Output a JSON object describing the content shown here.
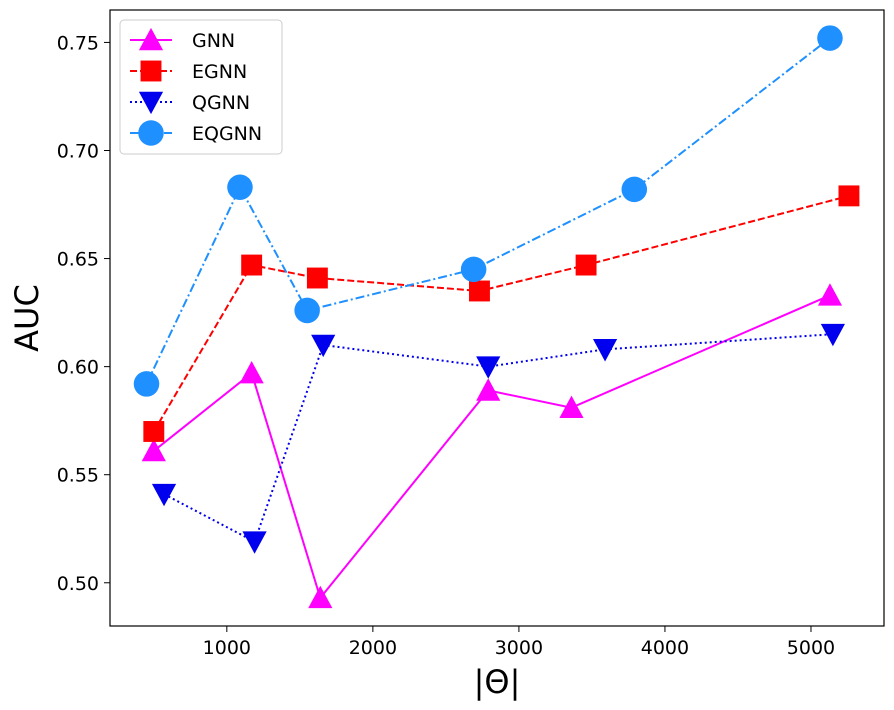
{
  "chart_data": {
    "type": "line",
    "title": "",
    "xlabel": "|Θ|",
    "ylabel": "AUC",
    "xlim": [
      200,
      5500
    ],
    "ylim": [
      0.48,
      0.765
    ],
    "xticks": [
      1000,
      2000,
      3000,
      4000,
      5000
    ],
    "xtick_labels": [
      "1000",
      "2000",
      "3000",
      "4000",
      "5000"
    ],
    "yticks": [
      0.5,
      0.55,
      0.6,
      0.65,
      0.7,
      0.75
    ],
    "ytick_labels": [
      "0.50",
      "0.55",
      "0.60",
      "0.65",
      "0.70",
      "0.75"
    ],
    "grid": false,
    "legend_position": "top-left",
    "series": [
      {
        "name": "GNN",
        "color": "#ff00ff",
        "linestyle": "solid",
        "marker": "triangle-up",
        "x": [
          500,
          1170,
          1640,
          2790,
          3360,
          5130
        ],
        "y": [
          0.561,
          0.597,
          0.493,
          0.589,
          0.581,
          0.633
        ]
      },
      {
        "name": "EGNN",
        "color": "#ff0000",
        "linestyle": "dashed",
        "marker": "square",
        "x": [
          500,
          1170,
          1620,
          2730,
          3460,
          5260
        ],
        "y": [
          0.57,
          0.647,
          0.641,
          0.635,
          0.647,
          0.679
        ]
      },
      {
        "name": "QGNN",
        "color": "#0000ee",
        "linestyle": "dotted",
        "marker": "triangle-down",
        "x": [
          570,
          1190,
          1660,
          2790,
          3590,
          5150
        ],
        "y": [
          0.541,
          0.519,
          0.61,
          0.6,
          0.608,
          0.615
        ]
      },
      {
        "name": "EQGNN",
        "color": "#1e90ff",
        "linestyle": "dashdot",
        "marker": "circle",
        "x": [
          450,
          1090,
          1550,
          2690,
          3790,
          5130
        ],
        "y": [
          0.592,
          0.683,
          0.626,
          0.645,
          0.682,
          0.752
        ]
      }
    ]
  }
}
